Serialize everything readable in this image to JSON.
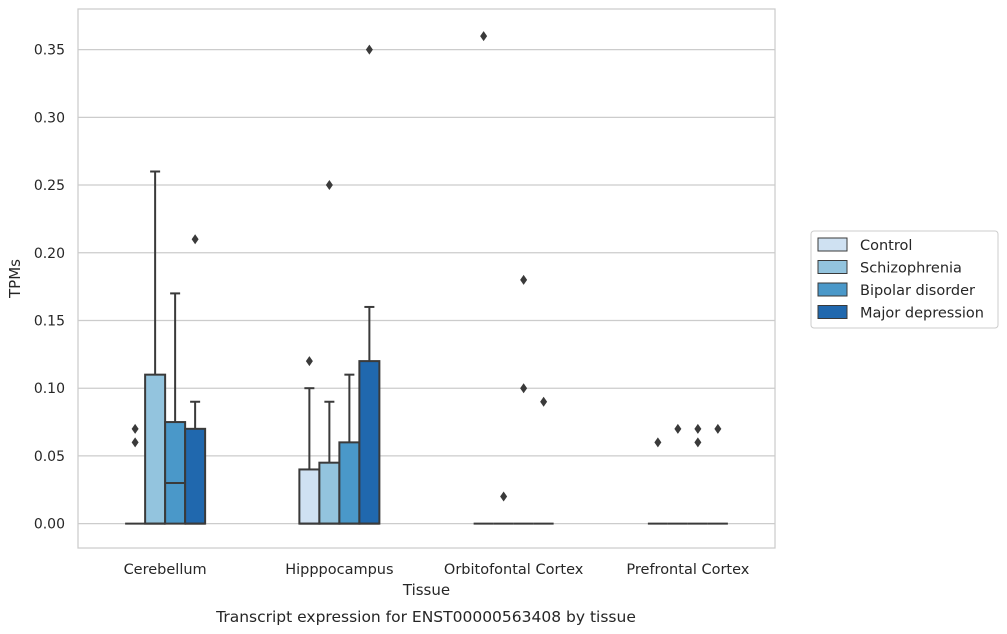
{
  "chart_data": {
    "type": "box",
    "title": "Transcript expression for ENST00000563408 by tissue",
    "xlabel": "Tissue",
    "ylabel": "TPMs",
    "ylim": [
      -0.018,
      0.38
    ],
    "yticks": [
      0.0,
      0.05,
      0.1,
      0.15,
      0.2,
      0.25,
      0.3,
      0.35
    ],
    "ytick_labels": [
      "0.00",
      "0.05",
      "0.10",
      "0.15",
      "0.20",
      "0.25",
      "0.30",
      "0.35"
    ],
    "categories": [
      "Cerebellum",
      "Hipppocampus",
      "Orbitofontal Cortex",
      "Prefrontal Cortex"
    ],
    "legend_position": "right",
    "grid": "horizontal",
    "series": [
      {
        "name": "Control",
        "color": "#cfe1f2",
        "boxes": [
          {
            "q1": 0.0,
            "median": 0.0,
            "q3": 0.0,
            "whislo": 0.0,
            "whishi": 0.0,
            "fliers": [
              0.06,
              0.07
            ]
          },
          {
            "q1": 0.0,
            "median": 0.0,
            "q3": 0.04,
            "whislo": 0.0,
            "whishi": 0.1,
            "fliers": [
              0.12
            ]
          },
          {
            "q1": 0.0,
            "median": 0.0,
            "q3": 0.0,
            "whislo": 0.0,
            "whishi": 0.0,
            "fliers": [
              0.36
            ]
          },
          {
            "q1": 0.0,
            "median": 0.0,
            "q3": 0.0,
            "whislo": 0.0,
            "whishi": 0.0,
            "fliers": [
              0.06
            ]
          }
        ]
      },
      {
        "name": "Schizophrenia",
        "color": "#93c4de",
        "boxes": [
          {
            "q1": 0.0,
            "median": 0.0,
            "q3": 0.11,
            "whislo": 0.0,
            "whishi": 0.26,
            "fliers": []
          },
          {
            "q1": 0.0,
            "median": 0.0,
            "q3": 0.045,
            "whislo": 0.0,
            "whishi": 0.09,
            "fliers": [
              0.25
            ]
          },
          {
            "q1": 0.0,
            "median": 0.0,
            "q3": 0.0,
            "whislo": 0.0,
            "whishi": 0.0,
            "fliers": [
              0.02
            ]
          },
          {
            "q1": 0.0,
            "median": 0.0,
            "q3": 0.0,
            "whislo": 0.0,
            "whishi": 0.0,
            "fliers": [
              0.07
            ]
          }
        ]
      },
      {
        "name": "Bipolar disorder",
        "color": "#4a98c9",
        "boxes": [
          {
            "q1": 0.0,
            "median": 0.03,
            "q3": 0.075,
            "whislo": 0.0,
            "whishi": 0.17,
            "fliers": []
          },
          {
            "q1": 0.0,
            "median": 0.0,
            "q3": 0.06,
            "whislo": 0.0,
            "whishi": 0.11,
            "fliers": []
          },
          {
            "q1": 0.0,
            "median": 0.0,
            "q3": 0.0,
            "whislo": 0.0,
            "whishi": 0.0,
            "fliers": [
              0.1,
              0.18
            ]
          },
          {
            "q1": 0.0,
            "median": 0.0,
            "q3": 0.0,
            "whislo": 0.0,
            "whishi": 0.0,
            "fliers": [
              0.06,
              0.07
            ]
          }
        ]
      },
      {
        "name": "Major depression",
        "color": "#2068ae",
        "boxes": [
          {
            "q1": 0.0,
            "median": 0.0,
            "q3": 0.07,
            "whislo": 0.0,
            "whishi": 0.09,
            "fliers": [
              0.21
            ]
          },
          {
            "q1": 0.0,
            "median": 0.0,
            "q3": 0.12,
            "whislo": 0.0,
            "whishi": 0.16,
            "fliers": [
              0.35
            ]
          },
          {
            "q1": 0.0,
            "median": 0.0,
            "q3": 0.0,
            "whislo": 0.0,
            "whishi": 0.0,
            "fliers": [
              0.09
            ]
          },
          {
            "q1": 0.0,
            "median": 0.0,
            "q3": 0.0,
            "whislo": 0.0,
            "whishi": 0.0,
            "fliers": [
              0.07
            ]
          }
        ]
      }
    ]
  }
}
